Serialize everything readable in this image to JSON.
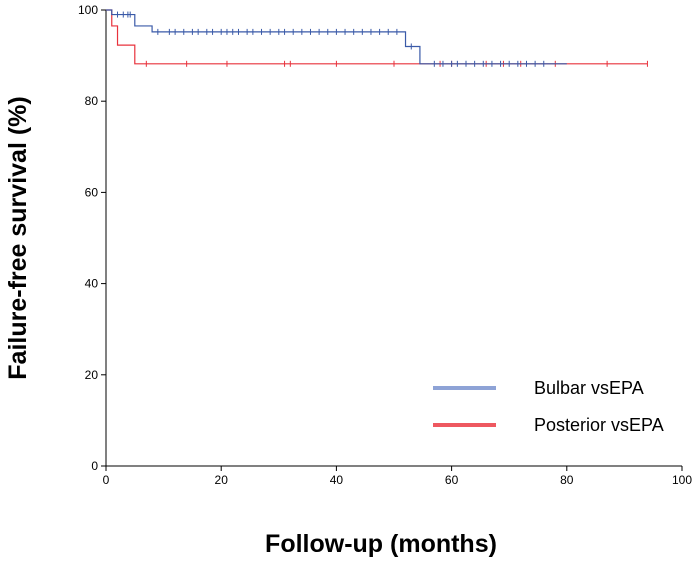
{
  "chart_data": {
    "type": "line",
    "step": true,
    "title": "",
    "xlabel": "Follow-up (months)",
    "ylabel": "Failure-free survival (%)",
    "xlim": [
      0,
      100
    ],
    "ylim": [
      0,
      100
    ],
    "x_ticks": [
      "0",
      "20",
      "40",
      "60",
      "80",
      "100"
    ],
    "y_ticks": [
      "0",
      "20",
      "40",
      "60",
      "80",
      "100"
    ],
    "grid": false,
    "legend_position": "bottom-right",
    "series": [
      {
        "name": "Bulbar vsEPA",
        "color": "#3a5aa8",
        "legend_color": "#8ea3d6",
        "steps": [
          [
            0,
            100
          ],
          [
            1,
            99
          ],
          [
            5,
            96.5
          ],
          [
            8,
            95.2
          ],
          [
            52,
            92
          ],
          [
            54.5,
            88.2
          ],
          [
            80,
            88.2
          ]
        ],
        "censored": [
          2,
          3,
          3.8,
          4.2,
          9,
          11,
          12,
          13.5,
          15,
          16,
          17.5,
          18.5,
          20,
          21,
          22,
          23,
          24.5,
          25.5,
          27,
          28.5,
          30,
          31,
          32.5,
          34,
          35.5,
          37,
          38.5,
          40,
          41.5,
          43,
          44.5,
          46,
          47.5,
          49,
          50.5,
          53,
          57,
          58.5,
          60,
          61,
          62.5,
          64,
          65.5,
          67,
          68.5,
          70,
          71.5,
          73,
          74.5,
          76
        ]
      },
      {
        "name": "Posterior vsEPA",
        "color": "#e8323c",
        "legend_color": "#ee5860",
        "steps": [
          [
            0,
            100
          ],
          [
            1,
            96.5
          ],
          [
            2,
            92.3
          ],
          [
            5,
            88.2
          ],
          [
            94,
            88.2
          ]
        ],
        "censored": [
          7,
          14,
          21,
          31,
          32,
          40,
          50,
          58,
          60,
          66,
          69,
          72,
          78,
          87,
          94
        ]
      }
    ]
  }
}
